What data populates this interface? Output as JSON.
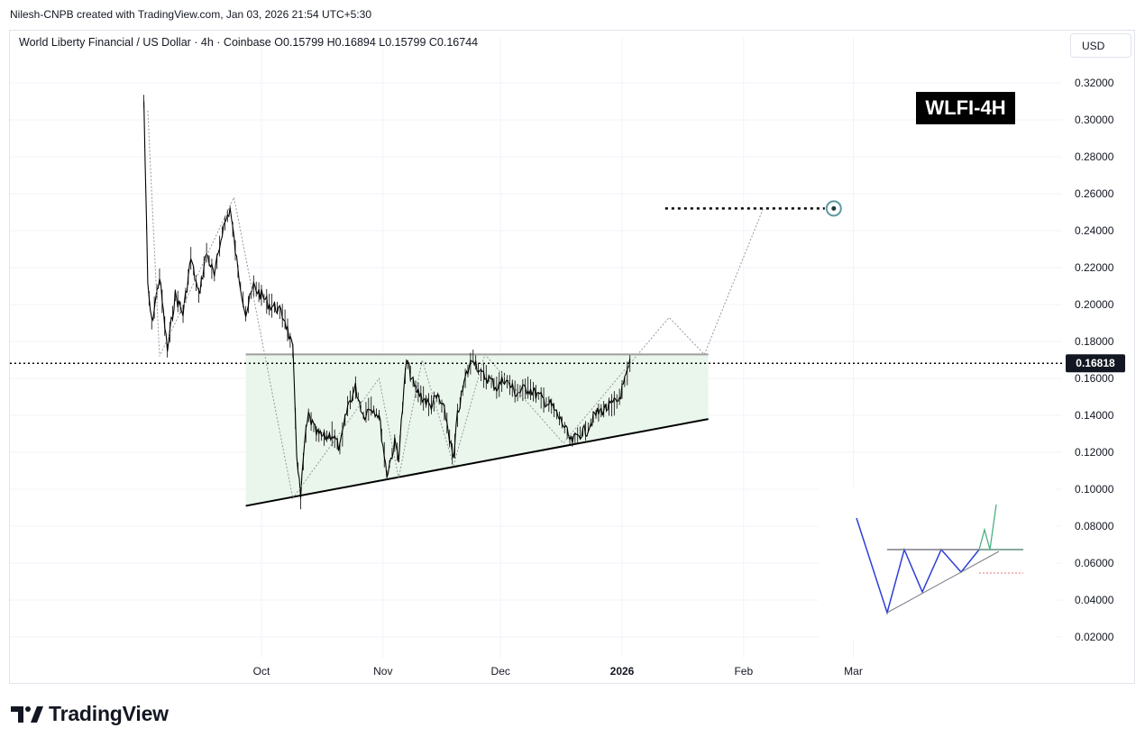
{
  "header": {
    "author_line": "Nilesh-CNPB created with TradingView.com, Jan 03, 2026 21:54 UTC+5:30"
  },
  "legend": {
    "text": "World Liberty Financial / US Dollar · 4h · Coinbase  O0.15799  H0.16894  L0.15799  C0.16744"
  },
  "currency_button": {
    "label": "USD"
  },
  "badge": {
    "label": "WLFI-4H"
  },
  "brand": {
    "name": "TradingView",
    "icon": "tradingview-logo-icon"
  },
  "colors": {
    "candles": "#000000",
    "zone_fill": "#e8f5e9",
    "zone_top_line": "#9e9e9e",
    "support_line": "#000000",
    "projection": "#9598a1",
    "target_circle": "#5b9aa0",
    "price_label_bg": "#131722",
    "inset_blue": "#2e3fd6",
    "inset_green": "#4caf82"
  },
  "chart_data": {
    "type": "line",
    "title": "World Liberty Financial / US Dollar · 4h · Coinbase",
    "ylim": [
      0.01,
      0.325
    ],
    "y_ticks": [
      "0.32000",
      "0.30000",
      "0.28000",
      "0.26000",
      "0.24000",
      "0.22000",
      "0.20000",
      "0.18000",
      "0.16000",
      "0.14000",
      "0.12000",
      "0.10000",
      "0.08000",
      "0.06000",
      "0.04000",
      "0.02000"
    ],
    "x_ticks": [
      {
        "label": "Oct",
        "date": "2025-10-01"
      },
      {
        "label": "Nov",
        "date": "2025-11-01"
      },
      {
        "label": "Dec",
        "date": "2025-12-01"
      },
      {
        "label": "2026",
        "date": "2026-01-01",
        "bold": true
      },
      {
        "label": "Feb",
        "date": "2026-02-01"
      },
      {
        "label": "Mar",
        "date": "2026-03-01"
      }
    ],
    "current_price": {
      "label": "0.16818",
      "value": 0.16818
    },
    "ohlc": {
      "open": 0.15799,
      "high": 0.16894,
      "low": 0.15799,
      "close": 0.16744
    },
    "series": [
      {
        "name": "",
        "x": [
          "2025-09-01",
          "2025-09-02",
          "2025-09-03",
          "2025-09-05",
          "2025-09-07",
          "2025-09-09",
          "2025-09-11",
          "2025-09-13",
          "2025-09-15",
          "2025-09-17",
          "2025-09-19",
          "2025-09-21",
          "2025-09-23",
          "2025-09-25",
          "2025-09-27",
          "2025-09-29",
          "2025-10-01",
          "2025-10-03",
          "2025-10-05",
          "2025-10-07",
          "2025-10-09",
          "2025-10-10",
          "2025-10-11",
          "2025-10-12",
          "2025-10-13",
          "2025-10-15",
          "2025-10-17",
          "2025-10-19",
          "2025-10-21",
          "2025-10-23",
          "2025-10-25",
          "2025-10-27",
          "2025-10-29",
          "2025-10-31",
          "2025-11-02",
          "2025-11-04",
          "2025-11-05",
          "2025-11-07",
          "2025-11-09",
          "2025-11-11",
          "2025-11-13",
          "2025-11-15",
          "2025-11-17",
          "2025-11-19",
          "2025-11-20",
          "2025-11-22",
          "2025-11-24",
          "2025-11-26",
          "2025-11-28",
          "2025-11-30",
          "2025-12-02",
          "2025-12-05",
          "2025-12-08",
          "2025-12-11",
          "2025-12-14",
          "2025-12-17",
          "2025-12-19",
          "2025-12-21",
          "2025-12-23",
          "2025-12-25",
          "2025-12-27",
          "2025-12-29",
          "2025-12-31",
          "2026-01-02",
          "2026-01-03"
        ],
        "values": [
          0.31,
          0.21,
          0.19,
          0.215,
          0.175,
          0.205,
          0.195,
          0.225,
          0.205,
          0.228,
          0.215,
          0.24,
          0.252,
          0.218,
          0.195,
          0.21,
          0.205,
          0.2,
          0.198,
          0.192,
          0.175,
          0.12,
          0.095,
          0.125,
          0.14,
          0.13,
          0.128,
          0.13,
          0.122,
          0.145,
          0.155,
          0.14,
          0.145,
          0.14,
          0.108,
          0.125,
          0.118,
          0.17,
          0.155,
          0.15,
          0.145,
          0.15,
          0.14,
          0.115,
          0.14,
          0.16,
          0.172,
          0.162,
          0.16,
          0.155,
          0.16,
          0.152,
          0.155,
          0.15,
          0.145,
          0.135,
          0.125,
          0.13,
          0.132,
          0.14,
          0.143,
          0.145,
          0.148,
          0.16,
          0.168
        ]
      }
    ],
    "pattern": {
      "resistance_level": 0.173,
      "support_line": {
        "from": {
          "date": "2025-09-27",
          "value": 0.091
        },
        "to": {
          "date": "2026-01-23",
          "value": 0.138
        }
      },
      "zone": {
        "from_date": "2025-09-27",
        "to_date": "2026-01-23"
      },
      "projection_path": [
        {
          "date": "2026-01-03",
          "value": 0.168
        },
        {
          "date": "2026-01-13",
          "value": 0.193
        },
        {
          "date": "2026-01-22",
          "value": 0.173
        },
        {
          "date": "2026-02-06",
          "value": 0.252
        }
      ],
      "target": {
        "date": "2026-02-24",
        "value": 0.252
      },
      "target_line_from": "2026-01-12"
    },
    "zigzag_path": [
      {
        "date": "2025-09-02",
        "value": 0.305
      },
      {
        "date": "2025-09-05",
        "value": 0.172
      },
      {
        "date": "2025-09-24",
        "value": 0.258
      },
      {
        "date": "2025-10-09",
        "value": 0.095
      },
      {
        "date": "2025-10-31",
        "value": 0.16
      },
      {
        "date": "2025-11-05",
        "value": 0.106
      },
      {
        "date": "2025-11-11",
        "value": 0.17
      },
      {
        "date": "2025-11-19",
        "value": 0.113
      },
      {
        "date": "2025-11-27",
        "value": 0.173
      },
      {
        "date": "2025-12-17",
        "value": 0.125
      },
      {
        "date": "2026-01-03",
        "value": 0.168
      }
    ]
  }
}
